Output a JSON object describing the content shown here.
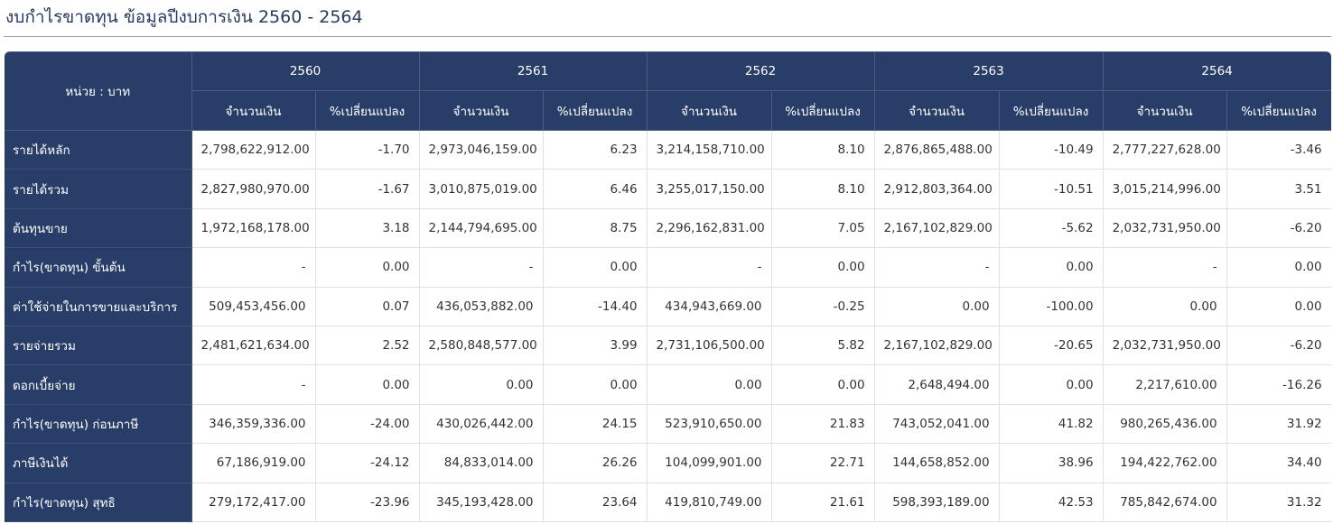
{
  "page_title": "งบกำไรขาดทุน ข้อมูลปีงบการเงิน 2560 - 2564",
  "table": {
    "unit_label": "หน่วย : บาท",
    "years": [
      "2560",
      "2561",
      "2562",
      "2563",
      "2564"
    ],
    "amount_header": "จำนวนเงิน",
    "change_header": "%เปลี่ยนแปลง",
    "rows": [
      {
        "label": "รายได้หลัก",
        "cells": [
          "2,798,622,912.00",
          "-1.70",
          "2,973,046,159.00",
          "6.23",
          "3,214,158,710.00",
          "8.10",
          "2,876,865,488.00",
          "-10.49",
          "2,777,227,628.00",
          "-3.46"
        ]
      },
      {
        "label": "รายได้รวม",
        "cells": [
          "2,827,980,970.00",
          "-1.67",
          "3,010,875,019.00",
          "6.46",
          "3,255,017,150.00",
          "8.10",
          "2,912,803,364.00",
          "-10.51",
          "3,015,214,996.00",
          "3.51"
        ]
      },
      {
        "label": "ต้นทุนขาย",
        "cells": [
          "1,972,168,178.00",
          "3.18",
          "2,144,794,695.00",
          "8.75",
          "2,296,162,831.00",
          "7.05",
          "2,167,102,829.00",
          "-5.62",
          "2,032,731,950.00",
          "-6.20"
        ]
      },
      {
        "label": "กำไร(ขาดทุน) ขั้นต้น",
        "cells": [
          "-",
          "0.00",
          "-",
          "0.00",
          "-",
          "0.00",
          "-",
          "0.00",
          "-",
          "0.00"
        ]
      },
      {
        "label": "ค่าใช้จ่ายในการขายและบริการ",
        "cells": [
          "509,453,456.00",
          "0.07",
          "436,053,882.00",
          "-14.40",
          "434,943,669.00",
          "-0.25",
          "0.00",
          "-100.00",
          "0.00",
          "0.00"
        ]
      },
      {
        "label": "รายจ่ายรวม",
        "cells": [
          "2,481,621,634.00",
          "2.52",
          "2,580,848,577.00",
          "3.99",
          "2,731,106,500.00",
          "5.82",
          "2,167,102,829.00",
          "-20.65",
          "2,032,731,950.00",
          "-6.20"
        ]
      },
      {
        "label": "ดอกเบี้ยจ่าย",
        "cells": [
          "-",
          "0.00",
          "0.00",
          "0.00",
          "0.00",
          "0.00",
          "2,648,494.00",
          "0.00",
          "2,217,610.00",
          "-16.26"
        ]
      },
      {
        "label": "กำไร(ขาดทุน) ก่อนภาษี",
        "cells": [
          "346,359,336.00",
          "-24.00",
          "430,026,442.00",
          "24.15",
          "523,910,650.00",
          "21.83",
          "743,052,041.00",
          "41.82",
          "980,265,436.00",
          "31.92"
        ]
      },
      {
        "label": "ภาษีเงินได้",
        "cells": [
          "67,186,919.00",
          "-24.12",
          "84,833,014.00",
          "26.26",
          "104,099,901.00",
          "22.71",
          "144,658,852.00",
          "38.96",
          "194,422,762.00",
          "34.40"
        ]
      },
      {
        "label": "กำไร(ขาดทุน) สุทธิ",
        "cells": [
          "279,172,417.00",
          "-23.96",
          "345,193,428.00",
          "23.64",
          "419,810,749.00",
          "21.61",
          "598,393,189.00",
          "42.53",
          "785,842,674.00",
          "31.32"
        ]
      }
    ]
  }
}
